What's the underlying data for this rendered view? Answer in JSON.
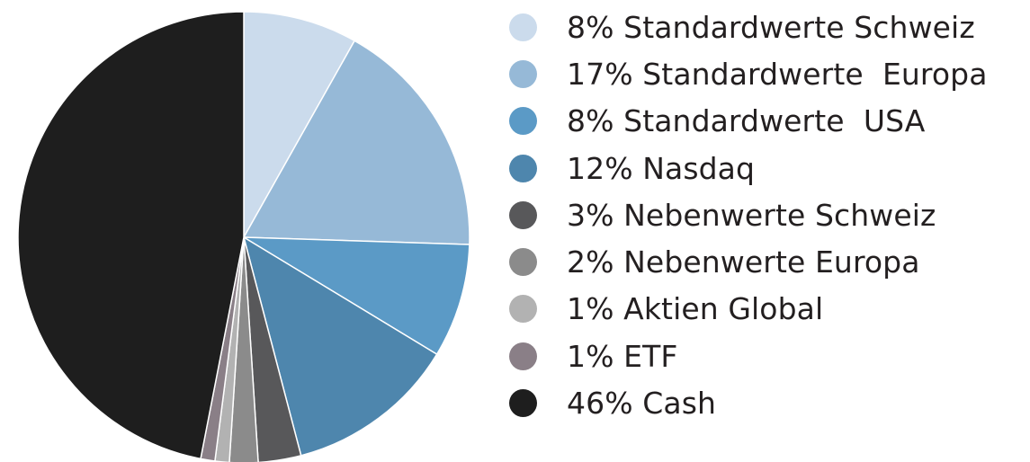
{
  "chart_data": {
    "type": "pie",
    "start_angle": "12 o'clock",
    "direction": "clockwise",
    "legend_position": "right",
    "slices": [
      {
        "value": 8,
        "label": "8% Standardwerte Schweiz",
        "color": "#cbdbec"
      },
      {
        "value": 17,
        "label": "17% Standardwerte  Europa",
        "color": "#96b9d7"
      },
      {
        "value": 8,
        "label": "8% Standardwerte  USA",
        "color": "#5b9ac6"
      },
      {
        "value": 12,
        "label": "12% Nasdaq",
        "color": "#4e86ad"
      },
      {
        "value": 3,
        "label": "3% Nebenwerte Schweiz",
        "color": "#58585a"
      },
      {
        "value": 2,
        "label": "2% Nebenwerte Europa",
        "color": "#8b8b8b"
      },
      {
        "value": 1,
        "label": "1% Aktien Global",
        "color": "#b2b2b2"
      },
      {
        "value": 1,
        "label": "1% ETF",
        "color": "#8a7f87"
      },
      {
        "value": 46,
        "label": "46% Cash",
        "color": "#1e1e1e"
      }
    ]
  }
}
